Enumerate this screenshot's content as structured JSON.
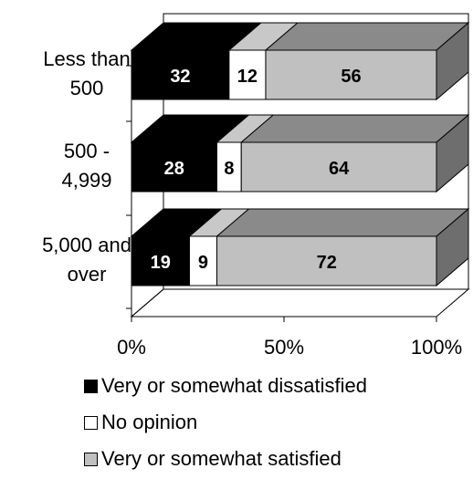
{
  "chart_data": {
    "type": "bar",
    "orientation": "horizontal",
    "stacked": true,
    "percent_stacked": true,
    "three_d": true,
    "categories": [
      "Less than\n500",
      "500 -\n4,999",
      "5,000 and\nover"
    ],
    "series": [
      {
        "name": "Very or somewhat dissatisfied",
        "values": [
          32,
          28,
          19
        ],
        "color": "#000000",
        "label_color": "#ffffff"
      },
      {
        "name": "No opinion",
        "values": [
          12,
          8,
          9
        ],
        "color": "#ffffff",
        "label_color": "#000000"
      },
      {
        "name": "Very or somewhat satisfied",
        "values": [
          56,
          64,
          72
        ],
        "color": "#c0c0c0",
        "label_color": "#000000"
      }
    ],
    "x_ticks": [
      "0%",
      "50%",
      "100%"
    ],
    "xlim": [
      0,
      100
    ],
    "legend_position": "bottom",
    "grid": false
  }
}
